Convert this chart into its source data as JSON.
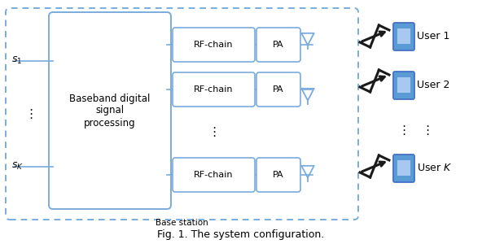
{
  "fig_width": 5.92,
  "fig_height": 3.0,
  "dpi": 100,
  "bg_color": "#ffffff",
  "box_edge_color": "#4472c4",
  "box_fill_color": "#ffffff",
  "line_color": "#7aacdc",
  "text_color": "#000000",
  "title_text": "Fig. 1. The system configuration.",
  "baseband_label": "Baseband digital\nsignal\nprocessing",
  "base_station_label": "Base station",
  "rf_chain_label": "RF-chain",
  "pa_label": "PA",
  "s1_label": "$s_1$",
  "sK_label": "$s_K$",
  "user_labels": [
    "User 1",
    "User 2",
    "User $K$"
  ],
  "dots": "⋮"
}
